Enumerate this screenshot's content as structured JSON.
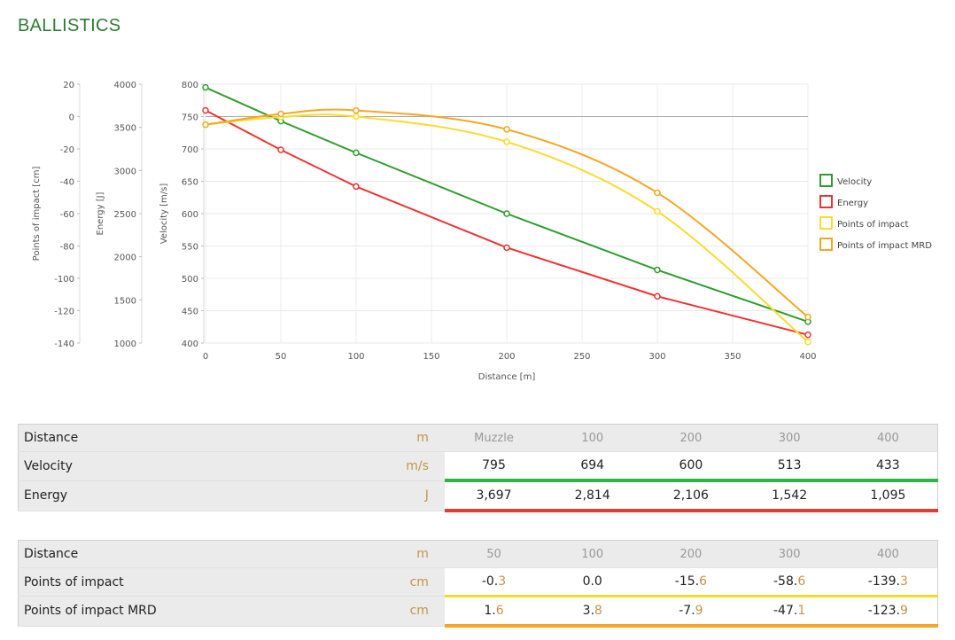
{
  "title": "BALLISTICS",
  "colors": {
    "velocity": "#2e9e2e",
    "energy": "#ee3333",
    "poi": "#f9dc2e",
    "poi_mrd": "#f5a623",
    "title": "#2e7d32"
  },
  "chart_data": {
    "type": "line",
    "xlabel": "Distance [m]",
    "xlim": [
      0,
      400
    ],
    "x_ticks": [
      0,
      50,
      100,
      150,
      200,
      250,
      300,
      350,
      400
    ],
    "grid": true,
    "legend_position": "right",
    "axes": [
      {
        "id": "poi",
        "label": "Points of impact [cm]",
        "range": [
          -140,
          20
        ],
        "ticks": [
          20,
          0,
          -20,
          -40,
          -60,
          -80,
          -100,
          -120,
          -140
        ]
      },
      {
        "id": "energy",
        "label": "Energy [J]",
        "range": [
          1000,
          4000
        ],
        "ticks": [
          4000,
          3500,
          3000,
          2500,
          2000,
          1500,
          1000
        ]
      },
      {
        "id": "velocity",
        "label": "Velocity [m/s]",
        "range": [
          400,
          800
        ],
        "ticks": [
          800,
          750,
          700,
          650,
          600,
          550,
          500,
          450,
          400
        ]
      }
    ],
    "series": [
      {
        "name": "Velocity",
        "axis": "velocity",
        "color": "#2e9e2e",
        "x": [
          0,
          50,
          100,
          200,
          300,
          400
        ],
        "y": [
          795,
          743,
          694,
          600,
          513,
          433
        ]
      },
      {
        "name": "Energy",
        "axis": "energy",
        "color": "#ee3333",
        "x": [
          0,
          50,
          100,
          200,
          300,
          400
        ],
        "y": [
          3697,
          3240,
          2814,
          2106,
          1542,
          1095
        ]
      },
      {
        "name": "Points of impact",
        "axis": "poi",
        "color": "#f9dc2e",
        "x": [
          0,
          50,
          100,
          200,
          300,
          400
        ],
        "y": [
          -5,
          -0.3,
          0.0,
          -15.6,
          -58.6,
          -139.3
        ]
      },
      {
        "name": "Points of impact MRD",
        "axis": "poi",
        "color": "#f5a623",
        "x": [
          0,
          50,
          100,
          200,
          300,
          400
        ],
        "y": [
          -5,
          1.6,
          3.8,
          -7.9,
          -47.1,
          -123.9
        ]
      }
    ]
  },
  "table1": {
    "header": {
      "label": "Distance",
      "unit": "m",
      "cols": [
        "Muzzle",
        "100",
        "200",
        "300",
        "400"
      ]
    },
    "rows": [
      {
        "label": "Velocity",
        "unit": "m/s",
        "values": [
          "795",
          "694",
          "600",
          "513",
          "433"
        ]
      },
      {
        "label": "Energy",
        "unit": "J",
        "values": [
          "3,697",
          "2,814",
          "2,106",
          "1,542",
          "1,095"
        ]
      }
    ]
  },
  "table2": {
    "header": {
      "label": "Distance",
      "unit": "m",
      "cols": [
        "50",
        "100",
        "200",
        "300",
        "400"
      ]
    },
    "rows": [
      {
        "label": "Points of impact",
        "unit": "cm",
        "whole": [
          "-0.",
          "0.0",
          "-15.",
          "-58.",
          "-139."
        ],
        "frac": [
          "3",
          "",
          "6",
          "6",
          "3"
        ]
      },
      {
        "label": "Points of impact MRD",
        "unit": "cm",
        "whole": [
          "1.",
          "3.",
          "-7.",
          "-47.",
          "-123."
        ],
        "frac": [
          "6",
          "8",
          "9",
          "1",
          "9"
        ]
      }
    ]
  }
}
